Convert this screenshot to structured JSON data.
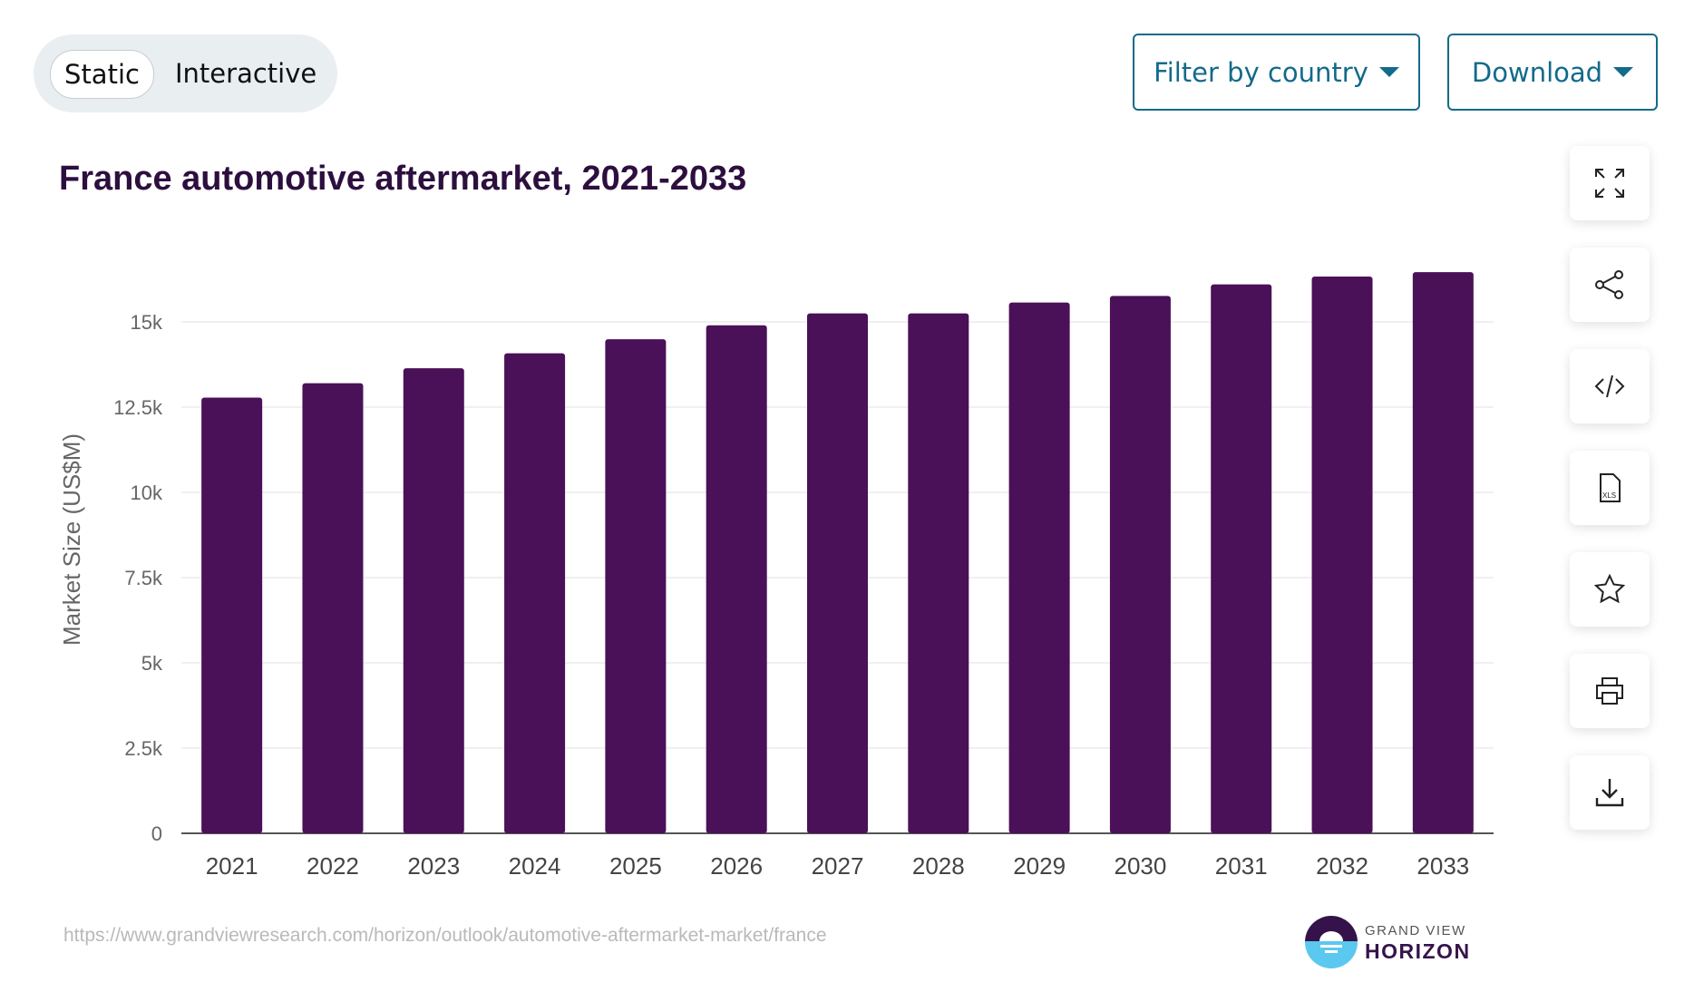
{
  "toggle": {
    "static_label": "Static",
    "interactive_label": "Interactive",
    "selected": "Static"
  },
  "filter_button": {
    "label": "Filter by country"
  },
  "download_button": {
    "label": "Download"
  },
  "side_toolbar": [
    "fullscreen-icon",
    "share-icon",
    "embed-code-icon",
    "xls-file-icon",
    "star-icon",
    "print-icon",
    "download-icon"
  ],
  "source_url": "https://www.grandviewresearch.com/horizon/outlook/automotive-aftermarket-market/france",
  "logo": {
    "line1": "GRAND VIEW",
    "line2": "HORIZON"
  },
  "colors": {
    "bar": "#4a1058",
    "accent": "#136a8a",
    "title": "#2d0f3f"
  },
  "chart_data": {
    "type": "bar",
    "title": "France automotive aftermarket, 2021-2033",
    "xlabel": "",
    "ylabel": "Market Size (US$M)",
    "categories": [
      "2021",
      "2022",
      "2023",
      "2024",
      "2025",
      "2026",
      "2027",
      "2028",
      "2029",
      "2030",
      "2031",
      "2032",
      "2033"
    ],
    "values": [
      12780,
      13200,
      13640,
      14080,
      14490,
      14900,
      15250,
      15250,
      15570,
      15760,
      16100,
      16330,
      16460
    ],
    "ylim": [
      0,
      16500
    ],
    "yticks": [
      0,
      2500,
      5000,
      7500,
      10000,
      12500,
      15000
    ],
    "ytick_labels": [
      "0",
      "2.5k",
      "5k",
      "7.5k",
      "10k",
      "12.5k",
      "15k"
    ],
    "grid": true,
    "legend": "none"
  }
}
